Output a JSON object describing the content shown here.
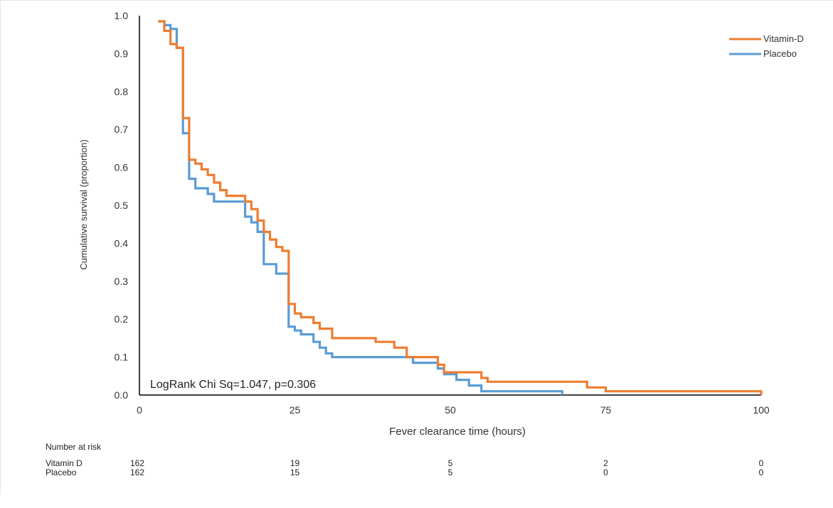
{
  "chart_data": {
    "type": "line",
    "subtype": "kaplan-meier step",
    "title": "",
    "xlabel": "Fever clearance time (hours)",
    "ylabel": "Cumulative survival (proportion)",
    "xlim": [
      0,
      100
    ],
    "ylim": [
      0,
      1.0
    ],
    "x_ticks": [
      "0",
      "25",
      "50",
      "75",
      "100"
    ],
    "y_ticks": [
      "0.0",
      "0.1",
      "0.2",
      "0.3",
      "0.4",
      "0.5",
      "0.6",
      "0.7",
      "0.8",
      "0.9",
      "1.0"
    ],
    "grid": false,
    "legend_position": "top-right",
    "annotation": "LogRank Chi Sq=1.047, p=0.306",
    "series": [
      {
        "name": "Vitamin-D",
        "color": "#ee7d31",
        "points": [
          [
            3,
            0.985
          ],
          [
            4,
            0.96
          ],
          [
            5,
            0.925
          ],
          [
            6,
            0.915
          ],
          [
            7,
            0.73
          ],
          [
            8,
            0.62
          ],
          [
            9,
            0.61
          ],
          [
            10,
            0.595
          ],
          [
            11,
            0.58
          ],
          [
            12,
            0.56
          ],
          [
            13,
            0.54
          ],
          [
            14,
            0.525
          ],
          [
            17,
            0.51
          ],
          [
            18,
            0.49
          ],
          [
            19,
            0.46
          ],
          [
            20,
            0.43
          ],
          [
            21,
            0.41
          ],
          [
            22,
            0.39
          ],
          [
            23,
            0.38
          ],
          [
            24,
            0.37
          ],
          [
            24,
            0.24
          ],
          [
            25,
            0.215
          ],
          [
            26,
            0.205
          ],
          [
            28,
            0.19
          ],
          [
            29,
            0.175
          ],
          [
            31,
            0.15
          ],
          [
            38,
            0.14
          ],
          [
            41,
            0.125
          ],
          [
            43,
            0.1
          ],
          [
            48,
            0.08
          ],
          [
            49,
            0.06
          ],
          [
            50,
            0.06
          ],
          [
            55,
            0.045
          ],
          [
            56,
            0.035
          ],
          [
            72,
            0.02
          ],
          [
            75,
            0.01
          ],
          [
            100,
            0.0
          ]
        ]
      },
      {
        "name": "Placebo",
        "color": "#5b9bd5",
        "points": [
          [
            3,
            0.985
          ],
          [
            4,
            0.975
          ],
          [
            5,
            0.965
          ],
          [
            6,
            0.915
          ],
          [
            7,
            0.69
          ],
          [
            8,
            0.57
          ],
          [
            9,
            0.545
          ],
          [
            11,
            0.53
          ],
          [
            12,
            0.51
          ],
          [
            17,
            0.47
          ],
          [
            18,
            0.455
          ],
          [
            19,
            0.43
          ],
          [
            20,
            0.41
          ],
          [
            20,
            0.345
          ],
          [
            22,
            0.32
          ],
          [
            24,
            0.24
          ],
          [
            24,
            0.18
          ],
          [
            25,
            0.17
          ],
          [
            26,
            0.16
          ],
          [
            28,
            0.14
          ],
          [
            29,
            0.125
          ],
          [
            30,
            0.11
          ],
          [
            31,
            0.1
          ],
          [
            44,
            0.085
          ],
          [
            48,
            0.07
          ],
          [
            49,
            0.055
          ],
          [
            51,
            0.04
          ],
          [
            53,
            0.025
          ],
          [
            55,
            0.01
          ],
          [
            68,
            0.0
          ]
        ]
      }
    ],
    "risk_table": {
      "title": "Number at risk",
      "times": [
        0,
        25,
        50,
        75,
        100
      ],
      "rows": [
        {
          "label": "Vitamin D",
          "values": [
            "162",
            "19",
            "5",
            "2",
            "0"
          ]
        },
        {
          "label": "Placebo",
          "values": [
            "162",
            "15",
            "5",
            "0",
            "0"
          ]
        }
      ]
    }
  }
}
